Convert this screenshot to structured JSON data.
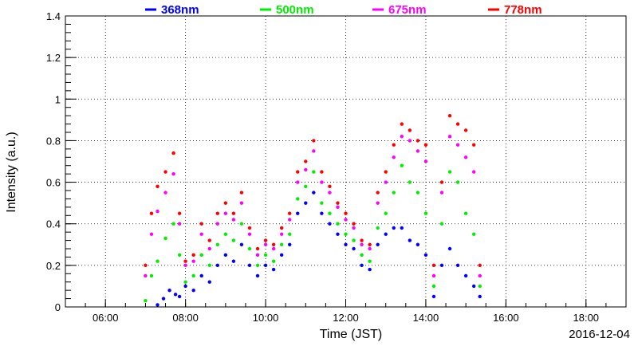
{
  "chart_data": {
    "type": "scatter",
    "xlabel": "Time (JST)",
    "ylabel": "Intensity (a.u.)",
    "date_label": "2016-12-04",
    "xlim": [
      5.0,
      19.0
    ],
    "ylim": [
      0,
      1.4
    ],
    "x_ticks": [
      {
        "value": 6,
        "label": "06:00"
      },
      {
        "value": 8,
        "label": "08:00"
      },
      {
        "value": 10,
        "label": "10:00"
      },
      {
        "value": 12,
        "label": "12:00"
      },
      {
        "value": 14,
        "label": "14:00"
      },
      {
        "value": 16,
        "label": "16:00"
      },
      {
        "value": 18,
        "label": "18:00"
      }
    ],
    "y_ticks": [
      {
        "value": 0,
        "label": "0"
      },
      {
        "value": 0.2,
        "label": "0.2"
      },
      {
        "value": 0.4,
        "label": "0.4"
      },
      {
        "value": 0.6,
        "label": "0.6"
      },
      {
        "value": 0.8,
        "label": "0.8"
      },
      {
        "value": 1.0,
        "label": "1"
      },
      {
        "value": 1.2,
        "label": "1.2"
      },
      {
        "value": 1.4,
        "label": "1.4"
      }
    ],
    "grid": true,
    "legend_position": "top",
    "series": [
      {
        "name": "368nm",
        "color": "#0000ff",
        "x": [
          7.3,
          7.45,
          7.6,
          7.75,
          7.85,
          8.0,
          8.2,
          8.4,
          8.6,
          8.8,
          9.0,
          9.2,
          9.4,
          9.6,
          9.8,
          10.0,
          10.2,
          10.4,
          10.6,
          10.8,
          11.0,
          11.2,
          11.4,
          11.6,
          11.8,
          12.0,
          12.2,
          12.4,
          12.6,
          12.8,
          13.0,
          13.2,
          13.4,
          13.6,
          13.8,
          14.0,
          14.2,
          14.4,
          14.6,
          14.8,
          15.0,
          15.2,
          15.35
        ],
        "y": [
          0.01,
          0.04,
          0.08,
          0.06,
          0.05,
          0.1,
          0.08,
          0.15,
          0.12,
          0.2,
          0.25,
          0.22,
          0.3,
          0.2,
          0.15,
          0.2,
          0.18,
          0.25,
          0.3,
          0.45,
          0.5,
          0.55,
          0.45,
          0.4,
          0.35,
          0.3,
          0.28,
          0.2,
          0.18,
          0.3,
          0.35,
          0.38,
          0.38,
          0.32,
          0.3,
          0.25,
          0.05,
          0.2,
          0.28,
          0.2,
          0.15,
          0.1,
          0.05
        ]
      },
      {
        "name": "500nm",
        "color": "#00ee00",
        "x": [
          7.0,
          7.15,
          7.3,
          7.5,
          7.7,
          7.85,
          8.0,
          8.2,
          8.4,
          8.6,
          8.8,
          9.0,
          9.2,
          9.4,
          9.6,
          9.8,
          10.0,
          10.2,
          10.4,
          10.6,
          10.8,
          11.0,
          11.2,
          11.4,
          11.6,
          11.8,
          12.0,
          12.2,
          12.4,
          12.6,
          12.8,
          13.0,
          13.2,
          13.4,
          13.6,
          13.8,
          14.0,
          14.2,
          14.4,
          14.6,
          14.8,
          15.0,
          15.2,
          15.35
        ],
        "y": [
          0.03,
          0.15,
          0.22,
          0.33,
          0.4,
          0.25,
          0.12,
          0.15,
          0.25,
          0.2,
          0.3,
          0.35,
          0.32,
          0.4,
          0.28,
          0.2,
          0.25,
          0.22,
          0.3,
          0.35,
          0.52,
          0.58,
          0.65,
          0.5,
          0.45,
          0.4,
          0.35,
          0.32,
          0.25,
          0.22,
          0.38,
          0.45,
          0.55,
          0.68,
          0.6,
          0.55,
          0.45,
          0.1,
          0.4,
          0.65,
          0.6,
          0.45,
          0.35,
          0.1
        ]
      },
      {
        "name": "675nm",
        "color": "#ff00ff",
        "x": [
          7.0,
          7.15,
          7.3,
          7.5,
          7.7,
          7.85,
          8.0,
          8.2,
          8.4,
          8.6,
          8.8,
          9.0,
          9.2,
          9.4,
          9.6,
          9.8,
          10.0,
          10.2,
          10.4,
          10.6,
          10.8,
          11.0,
          11.2,
          11.4,
          11.6,
          11.8,
          12.0,
          12.2,
          12.4,
          12.6,
          12.8,
          13.0,
          13.2,
          13.4,
          13.6,
          13.8,
          14.0,
          14.2,
          14.4,
          14.6,
          14.8,
          15.0,
          15.2,
          15.35
        ],
        "y": [
          0.15,
          0.35,
          0.46,
          0.55,
          0.64,
          0.4,
          0.2,
          0.22,
          0.35,
          0.28,
          0.4,
          0.45,
          0.42,
          0.5,
          0.35,
          0.25,
          0.3,
          0.28,
          0.35,
          0.42,
          0.6,
          0.66,
          0.75,
          0.6,
          0.55,
          0.48,
          0.42,
          0.38,
          0.3,
          0.28,
          0.5,
          0.6,
          0.72,
          0.82,
          0.8,
          0.75,
          0.7,
          0.15,
          0.55,
          0.82,
          0.78,
          0.72,
          0.65,
          0.15
        ]
      },
      {
        "name": "778nm",
        "color": "#ff0000",
        "x": [
          7.0,
          7.15,
          7.3,
          7.5,
          7.7,
          7.85,
          8.0,
          8.2,
          8.4,
          8.6,
          8.8,
          9.0,
          9.2,
          9.4,
          9.6,
          9.8,
          10.0,
          10.2,
          10.4,
          10.6,
          10.8,
          11.0,
          11.2,
          11.4,
          11.6,
          11.8,
          12.0,
          12.2,
          12.4,
          12.6,
          12.8,
          13.0,
          13.2,
          13.4,
          13.6,
          13.8,
          14.0,
          14.2,
          14.4,
          14.6,
          14.8,
          15.0,
          15.2,
          15.35
        ],
        "y": [
          0.2,
          0.45,
          0.58,
          0.65,
          0.74,
          0.45,
          0.22,
          0.25,
          0.4,
          0.32,
          0.45,
          0.5,
          0.45,
          0.55,
          0.38,
          0.28,
          0.32,
          0.3,
          0.38,
          0.45,
          0.65,
          0.7,
          0.8,
          0.65,
          0.58,
          0.5,
          0.45,
          0.4,
          0.32,
          0.3,
          0.55,
          0.65,
          0.78,
          0.88,
          0.85,
          0.8,
          0.78,
          0.2,
          0.6,
          0.92,
          0.88,
          0.85,
          0.78,
          0.2
        ]
      }
    ]
  }
}
